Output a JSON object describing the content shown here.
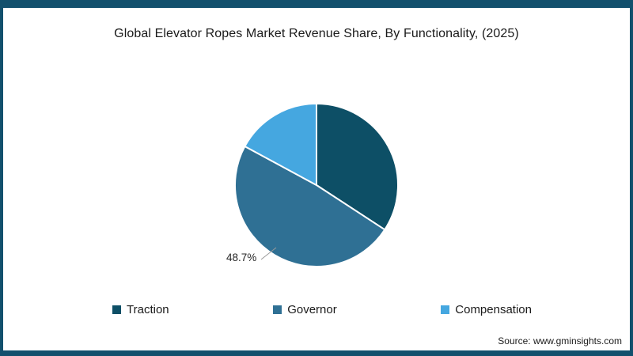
{
  "source": "Source: www.gminsights.com",
  "colors": {
    "frame": "#12506d",
    "background": "#ffffff",
    "text": "#1a1a1a"
  },
  "chart_data": {
    "type": "pie",
    "title": "Global Elevator Ropes Market Revenue Share, By Functionality, (2025)",
    "start_angle_deg": -90,
    "direction": "clockwise",
    "legend_position": "bottom",
    "series": [
      {
        "name": "Traction",
        "value": 34.2,
        "color": "#0d4f66",
        "label": ""
      },
      {
        "name": "Governor",
        "value": 48.7,
        "color": "#2f7094",
        "label": "48.7%"
      },
      {
        "name": "Compensation",
        "value": 17.1,
        "color": "#45a7e0",
        "label": ""
      }
    ]
  }
}
